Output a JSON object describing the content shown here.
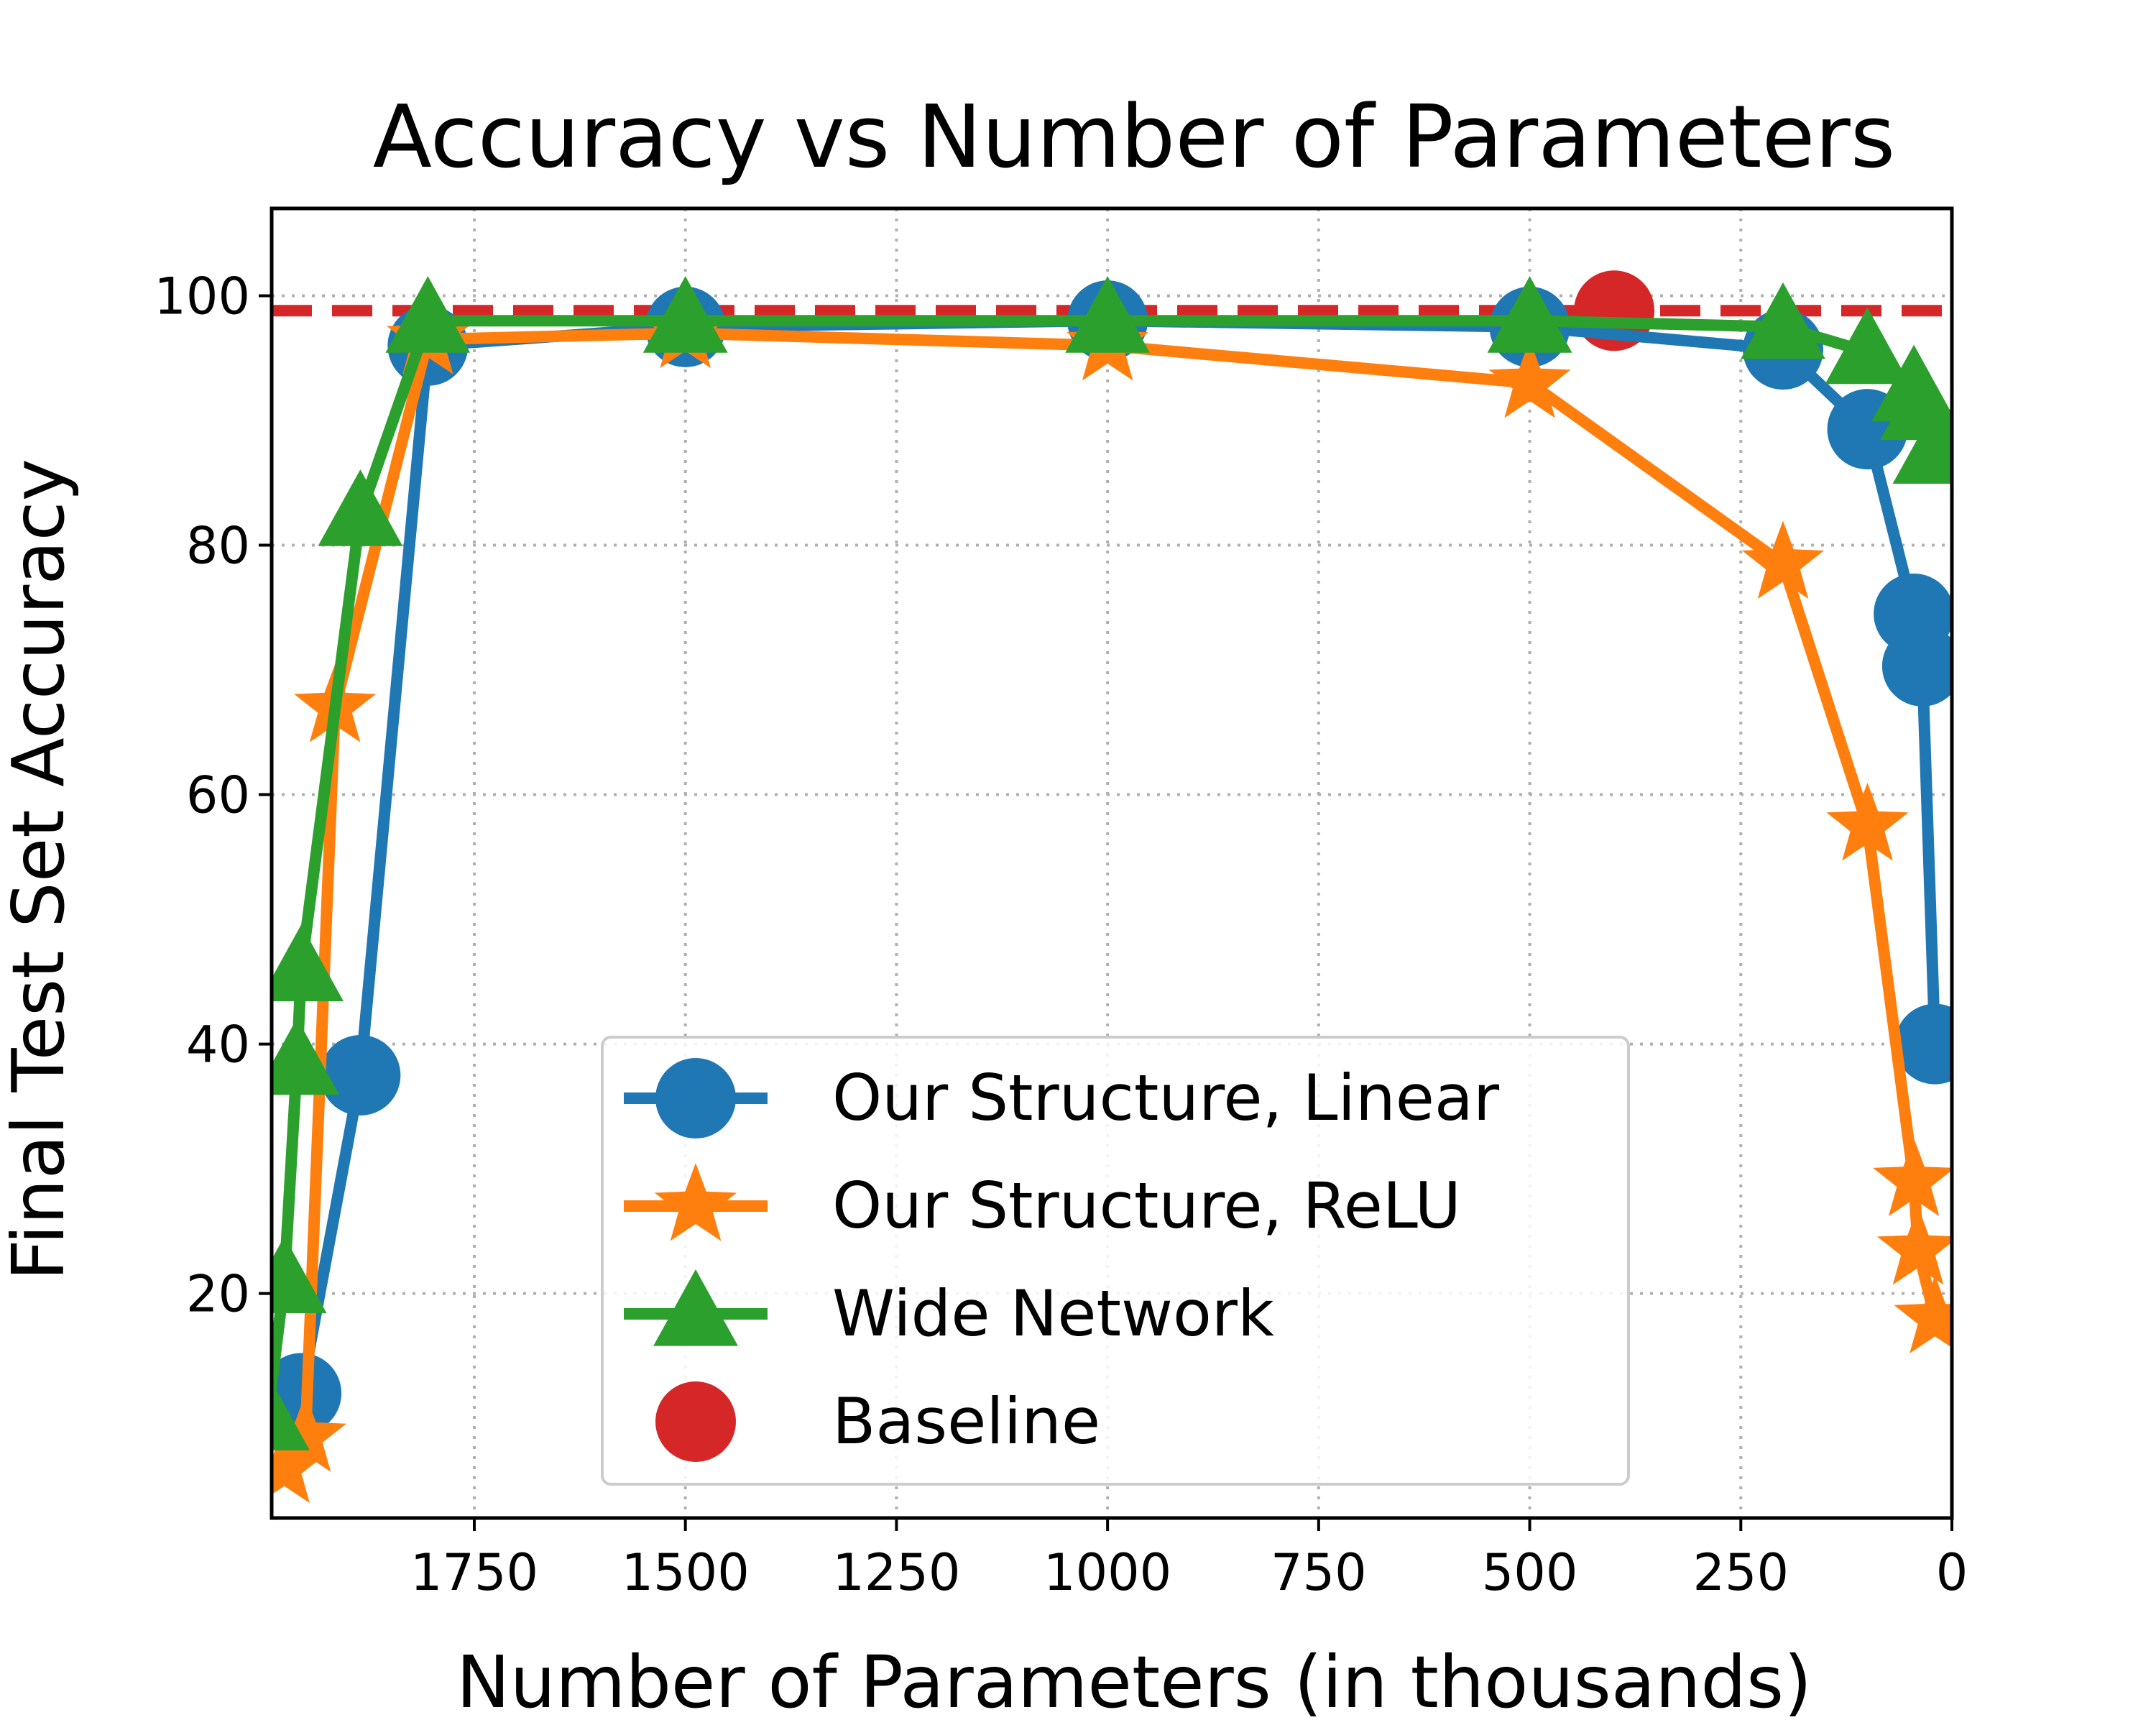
{
  "chart_data": {
    "type": "line",
    "title": "Accuracy vs Number of Parameters",
    "xlabel": "Number of Parameters (in thousands)",
    "ylabel": "Final Test Set Accuracy",
    "xlim": [
      1990,
      0
    ],
    "ylim": [
      2,
      107
    ],
    "x_reversed": true,
    "xticks": [
      1750,
      1500,
      1250,
      1000,
      750,
      500,
      250,
      0
    ],
    "yticks": [
      20,
      40,
      60,
      80,
      100
    ],
    "grid": true,
    "legend_position": "bottom-center",
    "series": [
      {
        "name": "Our Structure, Linear",
        "color": "#1f77b4",
        "marker": "circle",
        "points": [
          [
            1955,
            12
          ],
          [
            1885,
            37.5
          ],
          [
            1805,
            96
          ],
          [
            1500,
            97.5
          ],
          [
            1000,
            98
          ],
          [
            500,
            97.5
          ],
          [
            200,
            95.7
          ],
          [
            100,
            89.3
          ],
          [
            45,
            74.5
          ],
          [
            35,
            70.3
          ],
          [
            20,
            40
          ]
        ]
      },
      {
        "name": "Our Structure, ReLU",
        "color": "#ff7f0e",
        "marker": "star",
        "points": [
          [
            1975,
            6
          ],
          [
            1950,
            8.5
          ],
          [
            1915,
            67
          ],
          [
            1805,
            96.5
          ],
          [
            1500,
            97
          ],
          [
            1000,
            96
          ],
          [
            500,
            93
          ],
          [
            200,
            78.5
          ],
          [
            100,
            57.5
          ],
          [
            45,
            29
          ],
          [
            40,
            23.5
          ],
          [
            20,
            18
          ]
        ]
      },
      {
        "name": "Wide Network",
        "color": "#2ca02c",
        "marker": "triangle",
        "points": [
          [
            1995,
            10
          ],
          [
            1975,
            21
          ],
          [
            1960,
            38.5
          ],
          [
            1955,
            46
          ],
          [
            1885,
            82.5
          ],
          [
            1805,
            98
          ],
          [
            1500,
            98
          ],
          [
            1000,
            98
          ],
          [
            500,
            98
          ],
          [
            200,
            97.5
          ],
          [
            100,
            95.5
          ],
          [
            45,
            92.5
          ],
          [
            35,
            91
          ],
          [
            20,
            87.5
          ]
        ]
      },
      {
        "name": "Baseline",
        "color": "#d62728",
        "marker": "circle",
        "points": [
          [
            400,
            98.8
          ]
        ],
        "reference_line": 98.8
      }
    ]
  }
}
